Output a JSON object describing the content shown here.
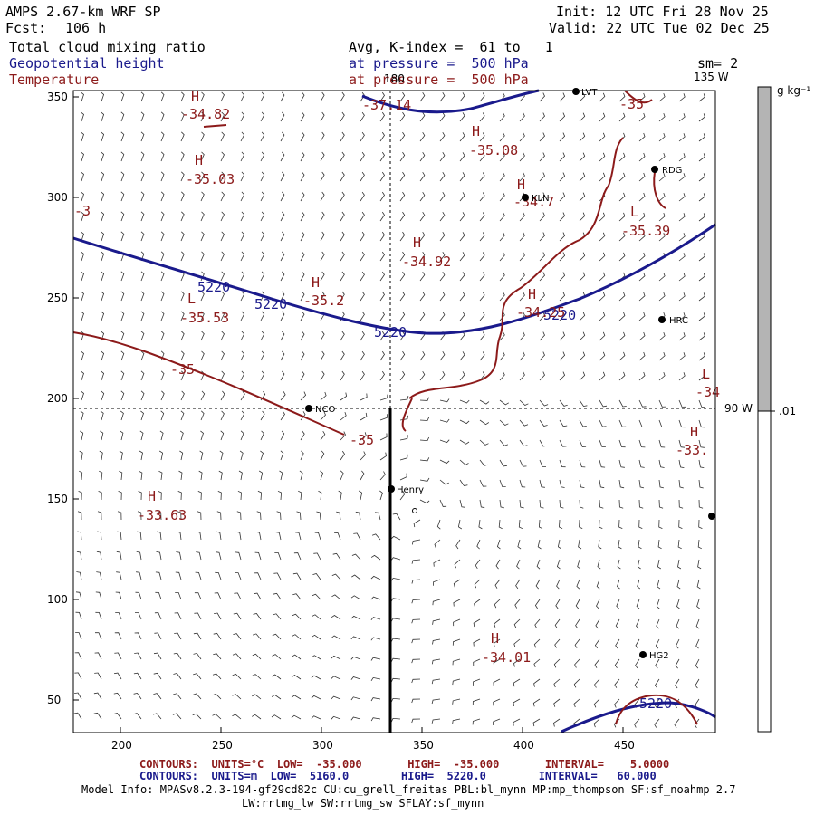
{
  "header": {
    "model": "AMPS 2.67-km WRF SP",
    "forecast_label": "Fcst:",
    "forecast_value": "106 h",
    "init": "Init: 12 UTC Fri 28 Nov 25",
    "valid": "Valid: 22 UTC Tue 02 Dec 25",
    "field1": "Total cloud mixing ratio",
    "field2": "Geopotential height",
    "field3": "Temperature",
    "avg": "Avg, K-index =  61 to   1",
    "pressure_line1": "at pressure =  500 hPa",
    "pressure_line2": "at pressure =  500 hPa",
    "smoothing": "sm= 2"
  },
  "map": {
    "x_ticks": [
      "200",
      "250",
      "300",
      "350",
      "400",
      "450"
    ],
    "y_ticks": [
      "350",
      "300",
      "250",
      "200",
      "150",
      "100",
      "50"
    ],
    "meridian_labels": {
      "lon180": "180",
      "lon135w": "135 W",
      "lon90w": "90 W"
    },
    "colorbar": {
      "unit": "g kg⁻¹",
      "level": ".01",
      "fill_color": "#b4b4b4"
    },
    "stations": [
      "NCO",
      "Henry",
      "KLN",
      "RDG",
      "HRC",
      "HG2",
      "LVT"
    ],
    "height_contours": [
      "5220",
      "5220",
      "5220",
      "5220",
      "5220"
    ],
    "temp_contours": [
      "-35",
      "-35",
      "-35",
      "-35",
      "-35"
    ],
    "temp_centers": [
      {
        "type": "H",
        "value": "-34.82"
      },
      {
        "type": "H",
        "value": "-35.03"
      },
      {
        "type": "H",
        "value": "-35.08"
      },
      {
        "type": "H",
        "value": "-34.7"
      },
      {
        "type": "H",
        "value": "-34.92"
      },
      {
        "type": "H",
        "value": "-35.2"
      },
      {
        "type": "L",
        "value": "-35.53"
      },
      {
        "type": "H",
        "value": "-34.25"
      },
      {
        "type": "L",
        "value": "-35.39"
      },
      {
        "type": "L",
        "value": "-34"
      },
      {
        "type": "H",
        "value": "-33."
      },
      {
        "type": "H",
        "value": "-33.63"
      },
      {
        "type": "H",
        "value": "-34.01"
      }
    ],
    "edge_fragments": {
      "top_left": "-37.14",
      "top_right": "-35",
      "left": "-3"
    }
  },
  "footer": {
    "line1": "CONTOURS:  UNITS=°C  LOW=  -35.000       HIGH=  -35.000       INTERVAL=    5.0000",
    "line2": "CONTOURS:  UNITS=m  LOW=  5160.0        HIGH=  5220.0        INTERVAL=   60.000",
    "model_info": "Model Info: MPASv8.2.3-194-gf29cd82c CU:cu_grell_freitas PBL:bl_mynn MP:mp_thompson SF:sf_noahmp 2.7",
    "model_info2": "LW:rrtmg_lw SW:rrtmg_sw SFLAY:sf_mynn"
  }
}
